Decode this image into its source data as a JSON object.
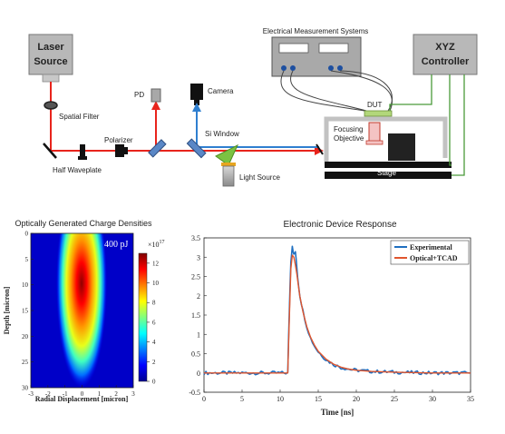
{
  "setup": {
    "laser_label": [
      "Laser",
      "Source"
    ],
    "spatial_filter_label": "Spatial Filter",
    "half_waveplate_label": "Half Waveplate",
    "polarizer_label": "Polarizer",
    "pd_label": "PD",
    "camera_label": "Camera",
    "si_window_label": "Si Window",
    "light_source_label": "Light Source",
    "electrical_label": "Electrical Measurement Systems",
    "dut_label": "DUT",
    "objective_label": [
      "Focusing",
      "Objective"
    ],
    "stage_label": "Stage",
    "controller_label": [
      "XYZ",
      "Controller"
    ]
  },
  "colors": {
    "laser_beam": "#e8241c",
    "probe_beam": "#2f7fd0",
    "instrument_knob": "#1d4fa0",
    "controller_cable": "#4a9a3a",
    "dut": "#b2d77a",
    "mirror_blue": "#5a87c6",
    "si_window": "#7cc242",
    "lamp": "#e7a51f"
  },
  "heatmap": {
    "title": "Optically Generated Charge Densities",
    "energy_label": "400 pJ",
    "xlabel": "Radial Displacement [micron]",
    "ylabel": "Depth [micron]",
    "x_ticks": [
      "-3",
      "-2",
      "-1",
      "0",
      "1",
      "2",
      "3"
    ],
    "y_ticks": [
      "0",
      "5",
      "10",
      "15",
      "20",
      "25",
      "30"
    ],
    "colorbar_ticks": [
      "0",
      "2",
      "4",
      "6",
      "8",
      "10",
      "12"
    ],
    "colorbar_multiplier": "×10",
    "colorbar_exponent": "17"
  },
  "chart_data": {
    "type": "line",
    "title": "Electronic Device Response",
    "xlabel": "Time [ns]",
    "ylabel": "",
    "xlim": [
      0,
      35
    ],
    "ylim": [
      -0.5,
      3.5
    ],
    "x_ticks": [
      "0",
      "5",
      "10",
      "15",
      "20",
      "25",
      "30",
      "35"
    ],
    "y_ticks": [
      "-0.5",
      "0",
      "0.5",
      "1",
      "1.5",
      "2",
      "2.5",
      "3",
      "3.5"
    ],
    "legend_position": "top-right",
    "grid": false,
    "series": [
      {
        "name": "Experimental",
        "color": "#1f6fc0",
        "x": [
          0,
          11.0,
          11.2,
          11.4,
          11.6,
          11.8,
          12.0,
          12.2,
          12.4,
          12.6,
          13.0,
          13.5,
          14.0,
          14.5,
          15.0,
          16.0,
          17.0,
          18.0,
          19.0,
          20.0,
          22.0,
          25.0,
          30.0,
          35.0
        ],
        "y": [
          0,
          0.0,
          1.6,
          2.9,
          3.3,
          3.05,
          3.15,
          2.7,
          2.3,
          2.0,
          1.6,
          1.2,
          0.9,
          0.7,
          0.55,
          0.35,
          0.22,
          0.14,
          0.1,
          0.07,
          0.04,
          0.02,
          0.0,
          0.0
        ]
      },
      {
        "name": "Optical+TCAD",
        "color": "#e0552d",
        "x": [
          0,
          11.0,
          11.2,
          11.4,
          11.6,
          11.8,
          12.0,
          12.2,
          12.4,
          12.6,
          13.0,
          13.5,
          14.0,
          14.5,
          15.0,
          16.0,
          17.0,
          18.0,
          19.0,
          20.0,
          22.0,
          25.0,
          30.0,
          35.0
        ],
        "y": [
          0,
          0.0,
          1.4,
          2.7,
          3.05,
          3.0,
          2.8,
          2.55,
          2.25,
          1.98,
          1.58,
          1.2,
          0.92,
          0.72,
          0.56,
          0.36,
          0.23,
          0.15,
          0.1,
          0.07,
          0.04,
          0.02,
          0.0,
          0.0
        ]
      }
    ]
  }
}
